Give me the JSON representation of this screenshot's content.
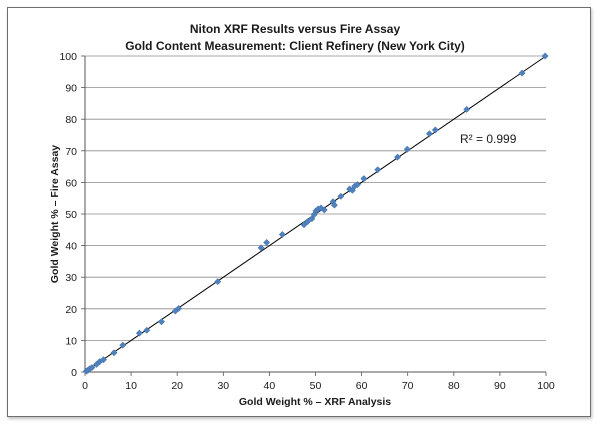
{
  "chart_data": {
    "type": "scatter",
    "title": "Niton XRF Results versus Fire Assay",
    "subtitle": "Gold Content Measurement: Client Refinery (New York City)",
    "xlabel": "Gold Weight % – XRF Analysis",
    "ylabel": "Gold Weight % – Fire Assay",
    "xlim": [
      0,
      100
    ],
    "ylim": [
      0,
      100
    ],
    "x_ticks": [
      "0",
      "10",
      "20",
      "30",
      "40",
      "50",
      "60",
      "70",
      "80",
      "90",
      "100"
    ],
    "y_ticks": [
      "0",
      "10",
      "20",
      "30",
      "40",
      "50",
      "60",
      "70",
      "80",
      "90",
      "100"
    ],
    "grid": "horizontal",
    "marker_color": "#4f81bd",
    "trendline": {
      "type": "linear",
      "from": [
        0,
        0
      ],
      "to": [
        100,
        100
      ],
      "color": "#000000"
    },
    "annotation": "R² = 0.999",
    "series": [
      {
        "x": [
          0.3,
          0.6,
          1.0,
          1.5,
          2.5,
          3.2,
          4.0,
          6.3,
          8.2,
          11.8,
          13.4,
          16.6,
          19.6,
          20.3,
          28.8,
          38.2,
          39.4,
          42.8,
          47.5,
          48.3,
          49.2,
          49.7,
          50.1,
          50.6,
          51.2,
          51.9,
          53.8,
          54.1,
          55.5,
          57.4,
          58.0,
          58.5,
          59.1,
          60.5,
          63.5,
          67.8,
          69.9,
          74.7,
          76.0,
          82.8,
          94.8,
          99.8
        ],
        "y": [
          0.3,
          0.5,
          1.0,
          1.4,
          2.4,
          3.3,
          3.9,
          6.1,
          8.5,
          12.3,
          13.2,
          15.9,
          19.3,
          20.1,
          28.6,
          39.3,
          41.0,
          43.5,
          46.6,
          47.6,
          48.5,
          49.8,
          51.0,
          51.6,
          51.9,
          51.3,
          53.9,
          52.8,
          55.6,
          57.9,
          57.5,
          58.8,
          59.3,
          61.2,
          64.0,
          68.0,
          70.5,
          75.4,
          76.6,
          83.1,
          94.6,
          100.0
        ]
      }
    ]
  }
}
